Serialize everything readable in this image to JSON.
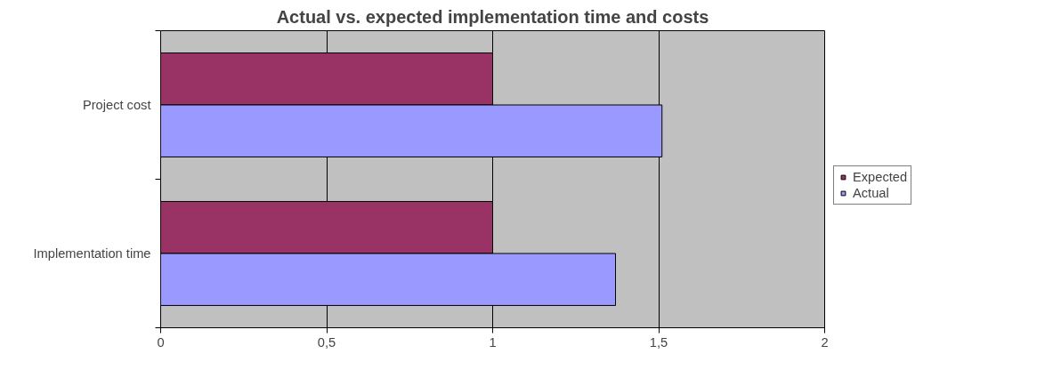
{
  "chart_data": {
    "type": "bar",
    "orientation": "horizontal",
    "title": "Actual vs. expected implementation time and costs",
    "categories": [
      "Project cost",
      "Implementation time"
    ],
    "series": [
      {
        "name": "Expected",
        "color": "#993366",
        "values": [
          1,
          1
        ]
      },
      {
        "name": "Actual",
        "color": "#9999ff",
        "values": [
          1.51,
          1.37
        ]
      }
    ],
    "xlim": [
      0,
      2
    ],
    "xticks": [
      0,
      {
        "value": 0.5,
        "label": "0,5"
      },
      1,
      {
        "value": 1.5,
        "label": "1,5"
      },
      2
    ],
    "grid": "x",
    "legend": "right"
  }
}
